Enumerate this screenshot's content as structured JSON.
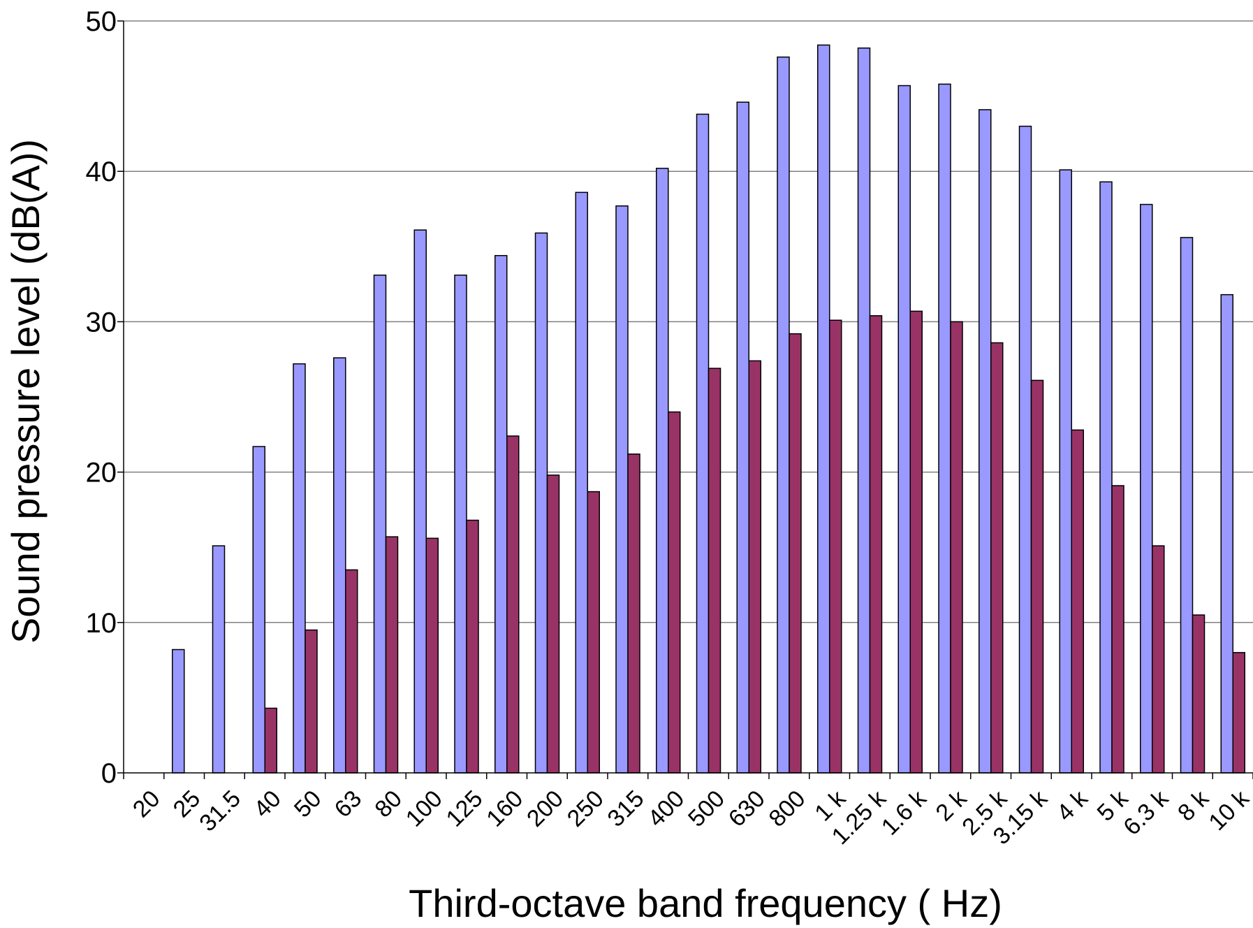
{
  "chart_data": {
    "type": "bar",
    "xlabel": "Third-octave band frequency ( Hz)",
    "ylabel": "Sound pressure level (dB(A))",
    "ylim": [
      0,
      50
    ],
    "yticks": [
      "0",
      "10",
      "20",
      "30",
      "40",
      "50"
    ],
    "grid": true,
    "legend": "none",
    "categories": [
      "20",
      "25",
      "31.5",
      "40",
      "50",
      "63",
      "80",
      "100",
      "125",
      "160",
      "200",
      "250",
      "315",
      "400",
      "500",
      "630",
      "800",
      "1 k",
      "1.25 k",
      "1.6 k",
      "2 k",
      "2.5 k",
      "3.15 k",
      "4 k",
      "5 k",
      "6.3 k",
      "8 k",
      "10 k"
    ],
    "series": [
      {
        "color": "#9999ff",
        "values": [
          0,
          8.2,
          15.1,
          21.7,
          27.2,
          27.6,
          33.1,
          36.1,
          33.1,
          34.4,
          35.9,
          38.6,
          37.7,
          40.2,
          43.8,
          44.6,
          47.6,
          48.4,
          48.2,
          45.7,
          45.8,
          44.1,
          43.0,
          40.1,
          39.3,
          37.8,
          35.6,
          31.8
        ]
      },
      {
        "color": "#993366",
        "values": [
          0,
          0,
          0,
          4.3,
          9.5,
          13.5,
          15.7,
          15.6,
          16.8,
          22.4,
          19.8,
          18.7,
          21.2,
          24.0,
          26.9,
          27.4,
          29.2,
          30.1,
          30.4,
          30.7,
          30.0,
          28.6,
          26.1,
          22.8,
          19.1,
          15.1,
          10.5,
          8.0
        ]
      }
    ]
  }
}
